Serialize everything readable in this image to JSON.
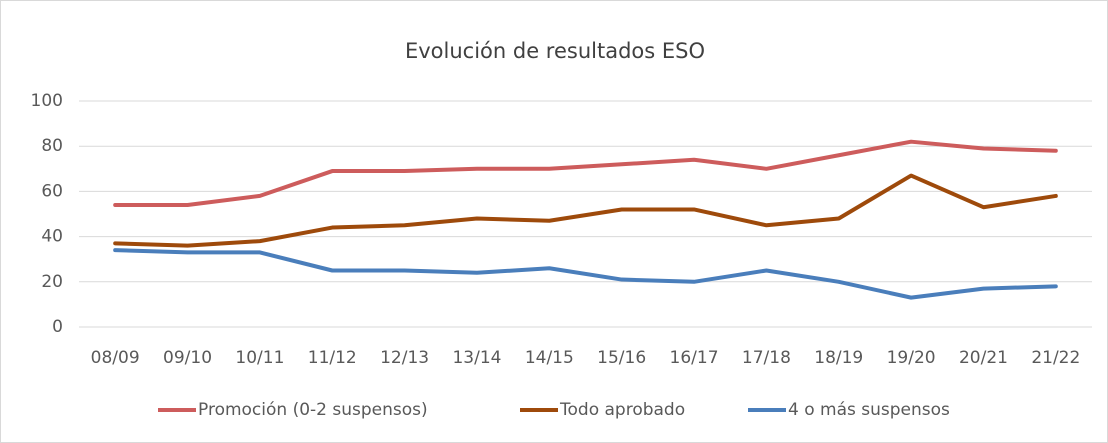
{
  "chart_data": {
    "type": "line",
    "title": "Evolución de resultados ESO",
    "categories": [
      "08/09",
      "09/10",
      "10/11",
      "11/12",
      "12/13",
      "13/14",
      "14/15",
      "15/16",
      "16/17",
      "17/18",
      "18/19",
      "19/20",
      "20/21",
      "21/22"
    ],
    "series": [
      {
        "name": "Promoción (0-2 suspensos)",
        "color": "#cd5c5c",
        "values": [
          54,
          54,
          58,
          69,
          69,
          70,
          70,
          72,
          74,
          70,
          76,
          82,
          79,
          78
        ]
      },
      {
        "name": "Todo aprobado",
        "color": "#9e4a0b",
        "values": [
          37,
          36,
          38,
          44,
          45,
          48,
          47,
          52,
          52,
          45,
          48,
          67,
          53,
          58
        ]
      },
      {
        "name": "4 o más suspensos",
        "color": "#4a7ebb",
        "values": [
          34,
          33,
          33,
          25,
          25,
          24,
          26,
          21,
          20,
          25,
          20,
          13,
          17,
          18
        ]
      }
    ],
    "ylim": [
      0,
      100
    ],
    "yticks": [
      0,
      20,
      40,
      60,
      80,
      100
    ],
    "grid": true,
    "legend": "bottom"
  }
}
